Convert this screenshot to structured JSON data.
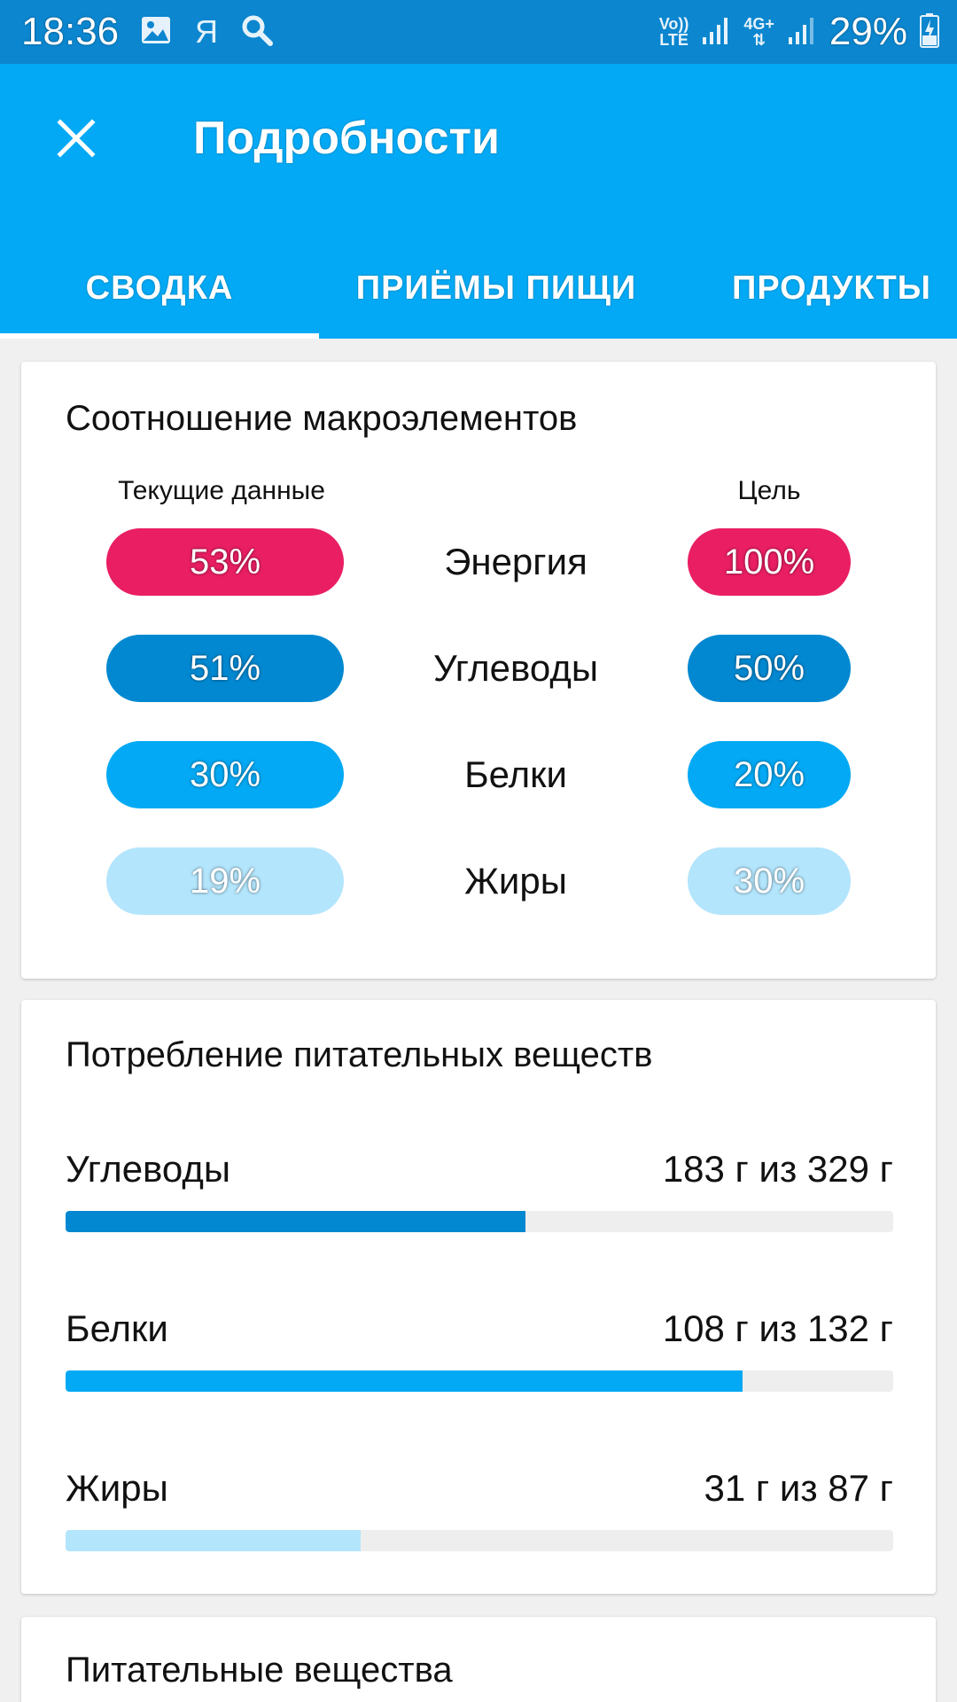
{
  "status_bar": {
    "time": "18:36",
    "ya_label": "Я",
    "volte_line1": "Vo))",
    "volte_line2": "LTE",
    "net_label": "4G+",
    "battery_percent": "29%"
  },
  "header": {
    "title": "Подробности",
    "tabs": [
      {
        "label": "СВОДКА",
        "selected": true
      },
      {
        "label": "ПРИЁМЫ ПИЩИ",
        "selected": false
      },
      {
        "label": "ПРОДУКТЫ",
        "selected": false
      }
    ]
  },
  "macro_card": {
    "title": "Соотношение макроэлементов",
    "current_header": "Текущие данные",
    "goal_header": "Цель",
    "rows": [
      {
        "name": "Энергия",
        "current": "53%",
        "goal": "100%",
        "color": "#e91e63"
      },
      {
        "name": "Углеводы",
        "current": "51%",
        "goal": "50%",
        "color": "#0288d1"
      },
      {
        "name": "Белки",
        "current": "30%",
        "goal": "20%",
        "color": "#03a9f4"
      },
      {
        "name": "Жиры",
        "current": "19%",
        "goal": "30%",
        "color": "#b3e5fc"
      }
    ]
  },
  "intake_card": {
    "title": "Потребление питательных веществ",
    "rows": [
      {
        "name": "Углеводы",
        "value": "183 г из 329 г",
        "fraction": 0.556,
        "color": "#0288d1"
      },
      {
        "name": "Белки",
        "value": "108 г из 132 г",
        "fraction": 0.818,
        "color": "#03a9f4"
      },
      {
        "name": "Жиры",
        "value": "31 г из 87 г",
        "fraction": 0.356,
        "color": "#b3e5fc"
      }
    ]
  },
  "nutrients_card": {
    "title": "Питательные вещества"
  },
  "colors": {
    "status_bar": "#0b86cf",
    "app_bar": "#03a9f4",
    "background": "#f0f0f0"
  }
}
